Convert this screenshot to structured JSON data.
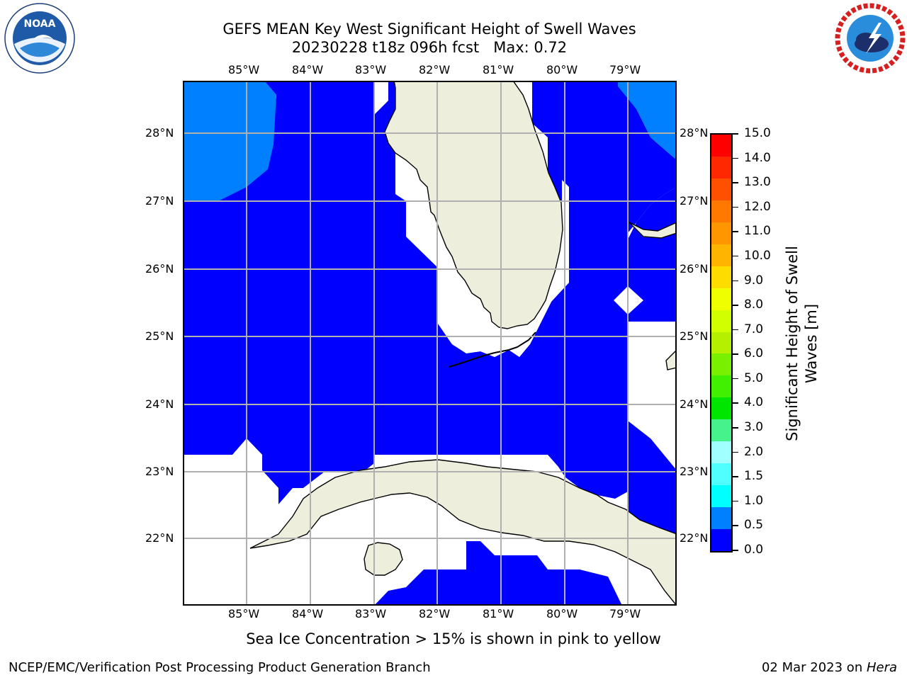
{
  "header": {
    "title_line1": "GEFS MEAN Key West Significant Height of Swell Waves",
    "title_line2": "20230228 t18z 096h fcst   Max: 0.72"
  },
  "logos": {
    "left": {
      "text": "NOAA",
      "ring_text": "NATIONAL OCEANIC AND ATMOSPHERIC ADMINISTRATION · U.S. DEPARTMENT OF COMMERCE"
    },
    "right": {
      "ring_text": "NATIONAL WEATHER SERVICE"
    }
  },
  "map": {
    "lon_labels": [
      "85°W",
      "84°W",
      "83°W",
      "82°W",
      "81°W",
      "80°W",
      "79°W"
    ],
    "lat_labels": [
      "28°N",
      "27°N",
      "26°N",
      "25°N",
      "24°N",
      "23°N",
      "22°N"
    ],
    "colors": {
      "land": "#eeeedd",
      "ocean_low": "#0000ff",
      "ocean_mid": "#0080ff",
      "grid": "#b0b0b0",
      "no_data": "#ffffff"
    }
  },
  "colorbar": {
    "label_line1": "Significant Height of Swell",
    "label_line2": "Waves [m]",
    "ticks": [
      "15.0",
      "14.0",
      "13.0",
      "12.0",
      "11.0",
      "10.0",
      "9.0",
      "8.0",
      "7.0",
      "6.0",
      "5.0",
      "4.0",
      "3.0",
      "2.0",
      "1.5",
      "1.0",
      "0.5",
      "0.0"
    ],
    "colors_top_to_bottom": [
      "#ff0000",
      "#ff2800",
      "#ff5000",
      "#ff7800",
      "#ff9600",
      "#ffb400",
      "#ffdc00",
      "#f0ff00",
      "#d2ff00",
      "#b4f000",
      "#78f000",
      "#40f000",
      "#00e600",
      "#46f28c",
      "#a0ffff",
      "#50ffff",
      "#00ffff",
      "#0080ff",
      "#0000ff"
    ]
  },
  "caption": "Sea Ice Concentration > 15% is shown in pink to yellow",
  "footer": {
    "left": "NCEP/EMC/Verification Post Processing Product Generation Branch",
    "right_date": "02 Mar 2023 on ",
    "right_host": "Hera"
  }
}
